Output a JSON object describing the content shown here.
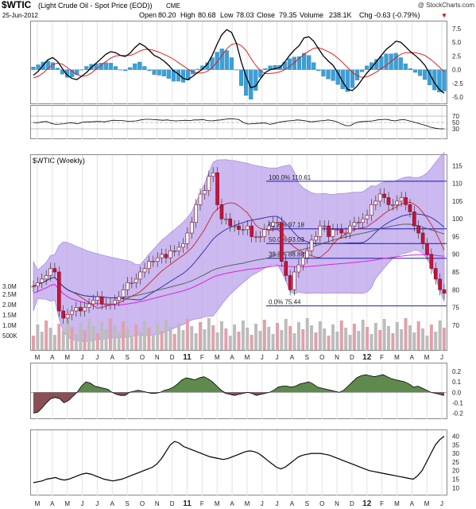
{
  "header": {
    "symbol": "$WTIC",
    "description": "(Light Crude Oil - Spot Price (EOD))",
    "exchange": "CME",
    "watermark": "@ StockCharts.com",
    "date": "25-Jun-2012",
    "open_label": "Open",
    "open_value": "80.20",
    "high_label": "High",
    "high_value": "80.68",
    "low_label": "Low",
    "low_value": "78.03",
    "close_label": "Close",
    "close_value": "79.35",
    "volume_label": "Volume",
    "volume_value": "238.1K",
    "chg_label": "Chg",
    "chg_value": "-0.63 (-0.79%)",
    "chg_arrow": "▼"
  },
  "price_panel_label": "$WTIC (Weekly)",
  "chart_data": {
    "type": "line",
    "subtype": "weekly-candlestick",
    "x_months": [
      "M",
      "A",
      "M",
      "J",
      "J",
      "A",
      "S",
      "O",
      "N",
      "D",
      "11",
      "F",
      "M",
      "A",
      "M",
      "J",
      "J",
      "A",
      "S",
      "O",
      "N",
      "D",
      "12",
      "F",
      "M",
      "A",
      "M",
      "J"
    ],
    "year_marks": [
      "11",
      "12"
    ],
    "macd": {
      "yticks": [
        "7.5",
        "5.0",
        "2.5",
        "0.0",
        "-2.5",
        "-5.0"
      ],
      "ylim": [
        -6,
        8.5
      ],
      "macd_line": [
        -1,
        -0.3,
        0.8,
        1.8,
        2.2,
        1.5,
        0.2,
        -1,
        -1.6,
        -1.8,
        -1.2,
        -0.5,
        0.4,
        1.2,
        2,
        2.8,
        3.3,
        3.1,
        2.6,
        2.4,
        3,
        4,
        4.8,
        4.3,
        3.5,
        2.6,
        2.2,
        1.6,
        0.8,
        -0.2,
        -0.8,
        -1.6,
        -1.8,
        -1.2,
        -0.5,
        0.1,
        1,
        2.6,
        4.6,
        6.4,
        7.3,
        6.8,
        4.8,
        1.5,
        -1.2,
        -3.3,
        -3,
        -1.6,
        -0.5,
        0,
        0.2,
        0.4,
        1.4,
        2.6,
        3.6,
        4.4,
        5.8,
        6,
        5.2,
        3.8,
        2.5,
        1.6,
        0.8,
        -0.6,
        -2.2,
        -3.6,
        -3.8,
        -3,
        -1.8,
        -0.6,
        0.4,
        1.5,
        2.6,
        3.7,
        4.4,
        5.2,
        5,
        4.2,
        3.3,
        2.6,
        1.8,
        0.8,
        -0.8,
        -2.4,
        -3.6,
        -4.3
      ],
      "signal_line": [
        -1.5,
        -1.2,
        -0.6,
        0.2,
        0.9,
        1.2,
        1,
        0.4,
        -0.3,
        -0.9,
        -1.2,
        -1.1,
        -0.6,
        0.1,
        0.8,
        1.5,
        2.1,
        2.5,
        2.6,
        2.6,
        2.6,
        2.9,
        3.4,
        3.7,
        3.7,
        3.5,
        3.2,
        2.8,
        2.4,
        1.9,
        1.3,
        0.7,
        0.1,
        -0.4,
        -0.6,
        -0.6,
        -0.3,
        0.4,
        1.4,
        2.6,
        3.8,
        4.6,
        4.8,
        4.4,
        3.5,
        2.1,
        0.8,
        -0.2,
        -0.7,
        -0.7,
        -0.6,
        -0.4,
        0,
        0.6,
        1.3,
        2,
        2.8,
        3.4,
        3.9,
        4,
        3.7,
        3.3,
        2.8,
        2.1,
        1.3,
        0.4,
        -0.5,
        -1.1,
        -1.4,
        -1.3,
        -0.9,
        -0.4,
        0.2,
        0.8,
        1.5,
        2.2,
        2.8,
        3.1,
        3.1,
        3.1,
        2.9,
        2.6,
        2,
        1.3,
        0.5,
        -0.4
      ],
      "legend": ""
    },
    "rsi": {
      "yticks": [
        "70",
        "50",
        "30"
      ],
      "ylim": [
        0,
        100
      ],
      "values": [
        50,
        49,
        52,
        53,
        47,
        44,
        45,
        46,
        49,
        48,
        46,
        51,
        52,
        52,
        53,
        53,
        52,
        55,
        57,
        56,
        56,
        54,
        54,
        55,
        58,
        60,
        60,
        59,
        58,
        57,
        58,
        56,
        55,
        56,
        57,
        56,
        58,
        58,
        59,
        56,
        55,
        57,
        58,
        60,
        62,
        61,
        59,
        50,
        45,
        46,
        47,
        48,
        48,
        44,
        47,
        51,
        53,
        55,
        56,
        58,
        57,
        55,
        52,
        53,
        55,
        56,
        58,
        56,
        52,
        45,
        40,
        40,
        48,
        52,
        53,
        54,
        55,
        58,
        59,
        60,
        57,
        55,
        58,
        59,
        56,
        52,
        48,
        44,
        40,
        35,
        32,
        30,
        30
      ]
    },
    "price": {
      "yticks": [
        "115",
        "110",
        "105",
        "100",
        "95",
        "90",
        "85",
        "80",
        "75",
        "70"
      ],
      "ylim": [
        63,
        118
      ],
      "volume_labels": [
        "3.0M",
        "2.5M",
        "2.0M",
        "1.5M",
        "1.0M",
        "500K"
      ],
      "fib_levels": [
        {
          "label": "100.0% 110.61",
          "value": 110.61
        },
        {
          "label": "61.8% 97.18",
          "value": 97.18
        },
        {
          "label": "50.0% 93.03",
          "value": 93.03
        },
        {
          "label": "38.2% 88.88",
          "value": 88.88
        },
        {
          "label": "0.0% 75.44",
          "value": 75.44
        }
      ],
      "closes": [
        81,
        82,
        83,
        84,
        86,
        85,
        74,
        72,
        73,
        74,
        75,
        74,
        75,
        76,
        77,
        78,
        76,
        76,
        76,
        77,
        78,
        80,
        82,
        82,
        83,
        85,
        86,
        88,
        88,
        89,
        90,
        89,
        91,
        91,
        92,
        93,
        96,
        99,
        104,
        107,
        108,
        112,
        113,
        104,
        100,
        100,
        98,
        98,
        97,
        97,
        98,
        95,
        95,
        95,
        97,
        98,
        99,
        99,
        88,
        84,
        80,
        85,
        87,
        89,
        91,
        94,
        95,
        98,
        98,
        95,
        97,
        97,
        96,
        96,
        98,
        99,
        99,
        100,
        101,
        104,
        105,
        107,
        106,
        104,
        104,
        105,
        106,
        104,
        102,
        98,
        96,
        93,
        90,
        86,
        83,
        80,
        79
      ]
    },
    "lower1": {
      "yticks": [
        "0.2",
        "0.1",
        "0.0",
        "-0.1",
        "-0.2"
      ],
      "ylim": [
        -0.25,
        0.27
      ],
      "values": [
        -0.2,
        -0.19,
        -0.15,
        -0.1,
        -0.06,
        -0.05,
        -0.06,
        -0.1,
        -0.08,
        -0.04,
        0,
        0.06,
        0.1,
        0.09,
        0.06,
        0.05,
        0.04,
        0.03,
        0,
        -0.02,
        -0.03,
        -0.03,
        0,
        0.01,
        0.02,
        0.01,
        0,
        -0.01,
        -0.01,
        0,
        0.02,
        0.03,
        0.05,
        0.08,
        0.12,
        0.14,
        0.13,
        0.12,
        0.14,
        0.15,
        0.13,
        0.1,
        0.06,
        0.02,
        -0.01,
        -0.02,
        -0.03,
        -0.02,
        -0.01,
        0,
        -0.01,
        -0.03,
        -0.02,
        -0.01,
        0,
        0.02,
        0.05,
        0.06,
        0.06,
        0.05,
        0.06,
        0.08,
        0.09,
        0.1,
        0.08,
        0.05,
        0.04,
        0.03,
        0.02,
        0.01,
        0,
        0.02,
        0.06,
        0.1,
        0.14,
        0.16,
        0.17,
        0.16,
        0.15,
        0.16,
        0.17,
        0.15,
        0.13,
        0.12,
        0.11,
        0.1,
        0.08,
        0.05,
        0.06,
        0.04,
        0.02,
        0,
        -0.01,
        -0.02,
        -0.03
      ]
    },
    "lower2": {
      "yticks": [
        "40",
        "35",
        "30",
        "25",
        "20",
        "15",
        "10"
      ],
      "ylim": [
        6,
        43
      ],
      "values": [
        13,
        13.5,
        14,
        15,
        15.5,
        16,
        15,
        14.5,
        15,
        16,
        17,
        18,
        18.5,
        18,
        17,
        16,
        15,
        14.5,
        14,
        14.5,
        15,
        16,
        17,
        18,
        19,
        20,
        21,
        22,
        24,
        27,
        31,
        35,
        37,
        36,
        34,
        33,
        32,
        31,
        30,
        29,
        28,
        27.5,
        27,
        26.5,
        27,
        28,
        29,
        30,
        31,
        31.5,
        31,
        30,
        28,
        26,
        24,
        22,
        21,
        22,
        24,
        26,
        28,
        29,
        29.5,
        30,
        30,
        30,
        29.5,
        29,
        28,
        27,
        26,
        25,
        24,
        23,
        22,
        21,
        20,
        19.5,
        19,
        18.5,
        18,
        17.5,
        17,
        16.5,
        16,
        15.5,
        15,
        17,
        20,
        25,
        30,
        35,
        38,
        40
      ]
    }
  }
}
